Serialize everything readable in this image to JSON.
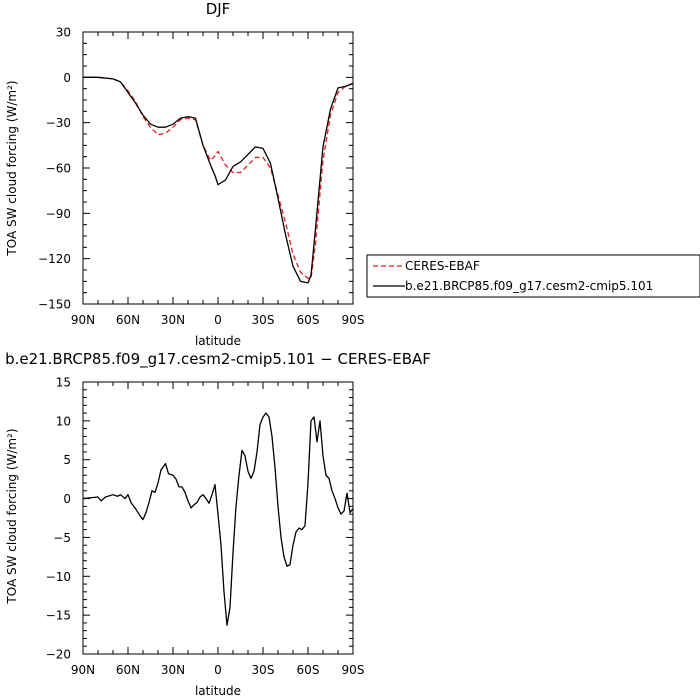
{
  "colors": {
    "obs": "#e0201b",
    "model": "#000000",
    "axis": "#000000"
  },
  "chart_data": [
    {
      "type": "line",
      "title": "DJF",
      "xlabel": "latitude",
      "ylabel": "TOA SW cloud forcing (W/m²)",
      "xlim": [
        90,
        -90
      ],
      "ylim": [
        -150,
        30
      ],
      "xticks": [
        90,
        60,
        30,
        0,
        -30,
        -60,
        -90
      ],
      "xtick_labels": [
        "90N",
        "60N",
        "30N",
        "0",
        "30S",
        "60S",
        "90S"
      ],
      "yticks": [
        30,
        0,
        -30,
        -60,
        -90,
        -120,
        -150
      ],
      "ytick_labels": [
        "30",
        "0",
        "−30",
        "−60",
        "−90",
        "−120",
        "−150"
      ],
      "legend": "outside-right",
      "series": [
        {
          "name": "CERES-EBAF",
          "style": "dashed",
          "color": "#e0201b",
          "x": [
            90,
            80,
            70,
            65,
            60,
            55,
            50,
            45,
            40,
            35,
            30,
            25,
            20,
            15,
            10,
            5,
            2,
            0,
            -5,
            -10,
            -15,
            -20,
            -25,
            -30,
            -35,
            -40,
            -45,
            -50,
            -55,
            -60,
            -62,
            -65,
            -70,
            -75,
            -80,
            -85,
            -90
          ],
          "values": [
            0,
            0,
            -1,
            -3,
            -9,
            -16,
            -26,
            -33,
            -38,
            -37,
            -33,
            -28,
            -27,
            -28,
            -45,
            -55,
            -52,
            -49,
            -58,
            -63,
            -63,
            -58,
            -53,
            -53,
            -60,
            -78,
            -96,
            -117,
            -129,
            -133,
            -133,
            -110,
            -55,
            -25,
            -10,
            -6,
            -4
          ]
        },
        {
          "name": "b.e21.BRCP85.f09_g17.cesm2-cmip5.101",
          "style": "solid",
          "color": "#000000",
          "x": [
            90,
            80,
            70,
            65,
            60,
            55,
            50,
            45,
            40,
            35,
            30,
            25,
            20,
            15,
            10,
            5,
            2,
            0,
            -5,
            -10,
            -15,
            -20,
            -25,
            -30,
            -35,
            -40,
            -45,
            -50,
            -55,
            -60,
            -62,
            -65,
            -70,
            -75,
            -80,
            -85,
            -90
          ],
          "values": [
            0,
            0,
            -1,
            -3,
            -10,
            -17,
            -25,
            -31,
            -33,
            -33,
            -31,
            -27,
            -26,
            -27,
            -45,
            -58,
            -65,
            -71,
            -68,
            -59,
            -56,
            -51,
            -46,
            -47,
            -57,
            -80,
            -104,
            -125,
            -135,
            -136,
            -131,
            -100,
            -46,
            -21,
            -7,
            -6,
            -4
          ]
        }
      ]
    },
    {
      "type": "line",
      "title": "b.e21.BRCP85.f09_g17.cesm2-cmip5.101 − CERES-EBAF",
      "xlabel": "latitude",
      "ylabel": "TOA SW cloud forcing (W/m²)",
      "xlim": [
        90,
        -90
      ],
      "ylim": [
        -20,
        15
      ],
      "xticks": [
        90,
        60,
        30,
        0,
        -30,
        -60,
        -90
      ],
      "xtick_labels": [
        "90N",
        "60N",
        "30N",
        "0",
        "30S",
        "60S",
        "90S"
      ],
      "yticks": [
        15,
        10,
        5,
        0,
        -5,
        -10,
        -15,
        -20
      ],
      "ytick_labels": [
        "15",
        "10",
        "5",
        "0",
        "−5",
        "−10",
        "−15",
        "−20"
      ],
      "series": [
        {
          "style": "solid",
          "color": "#000000",
          "x": [
            90,
            80,
            78,
            75,
            70,
            67,
            65,
            62,
            60,
            58,
            55,
            52,
            50,
            48,
            46,
            44,
            42,
            40,
            38,
            35,
            33,
            30,
            28,
            26,
            24,
            22,
            20,
            18,
            16,
            14,
            12,
            10,
            8,
            6,
            4,
            2,
            0,
            -2,
            -4,
            -6,
            -8,
            -10,
            -12,
            -14,
            -16,
            -18,
            -20,
            -22,
            -24,
            -26,
            -28,
            -30,
            -32,
            -34,
            -36,
            -38,
            -40,
            -42,
            -44,
            -46,
            -48,
            -50,
            -52,
            -54,
            -56,
            -58,
            -60,
            -62,
            -64,
            -66,
            -68,
            -70,
            -72,
            -74,
            -76,
            -78,
            -80,
            -82,
            -84,
            -86,
            -88,
            -90
          ],
          "values": [
            0,
            0.2,
            -0.3,
            0.2,
            0.5,
            0.3,
            0.5,
            0,
            0.5,
            -0.5,
            -1.3,
            -2.2,
            -2.7,
            -1.8,
            -0.5,
            1,
            0.8,
            2,
            3.7,
            4.5,
            3.2,
            3,
            2.5,
            1.5,
            1.5,
            0.8,
            -0.3,
            -1.2,
            -0.8,
            -0.5,
            0.2,
            0.5,
            0,
            -0.6,
            0.5,
            1.8,
            -2,
            -6,
            -12,
            -16.3,
            -14,
            -7,
            -1,
            3,
            6.2,
            5.5,
            3.5,
            2.6,
            3.5,
            6,
            9.5,
            10.5,
            11,
            10.5,
            8,
            4,
            -1,
            -5,
            -7.5,
            -8.7,
            -8.5,
            -6,
            -4.3,
            -3.8,
            -4,
            -3.5,
            2,
            10,
            10.5,
            7.3,
            10,
            5.5,
            3,
            2.6,
            1,
            0,
            -1.2,
            -2,
            -1.6,
            0.7,
            -1.8,
            -1.3
          ]
        }
      ]
    }
  ]
}
